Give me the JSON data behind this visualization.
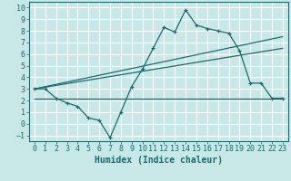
{
  "xlabel": "Humidex (Indice chaleur)",
  "bg_color": "#c8e8e8",
  "grid_color": "#ffffff",
  "line_color": "#1a6b6b",
  "xlim": [
    -0.5,
    23.5
  ],
  "ylim": [
    -1.5,
    10.5
  ],
  "xticks": [
    0,
    1,
    2,
    3,
    4,
    5,
    6,
    7,
    8,
    9,
    10,
    11,
    12,
    13,
    14,
    15,
    16,
    17,
    18,
    19,
    20,
    21,
    22,
    23
  ],
  "yticks": [
    -1,
    0,
    1,
    2,
    3,
    4,
    5,
    6,
    7,
    8,
    9,
    10
  ],
  "curve_x": [
    0,
    1,
    2,
    3,
    4,
    5,
    6,
    7,
    8,
    9,
    10,
    11,
    12,
    13,
    14,
    15,
    16,
    17,
    18,
    19,
    20,
    21,
    22,
    23
  ],
  "curve_y": [
    3.0,
    3.0,
    2.2,
    1.8,
    1.5,
    0.5,
    0.3,
    -1.2,
    1.0,
    3.2,
    4.7,
    6.5,
    8.3,
    7.9,
    9.8,
    8.5,
    8.2,
    8.0,
    7.8,
    6.3,
    3.5,
    3.5,
    2.2,
    2.2
  ],
  "line1_x": [
    0,
    23
  ],
  "line1_y": [
    3.0,
    7.5
  ],
  "line2_x": [
    0,
    23
  ],
  "line2_y": [
    3.0,
    6.5
  ],
  "line3_x": [
    0,
    23
  ],
  "line3_y": [
    2.2,
    2.2
  ],
  "xlabel_fontsize": 7,
  "tick_fontsize": 6
}
